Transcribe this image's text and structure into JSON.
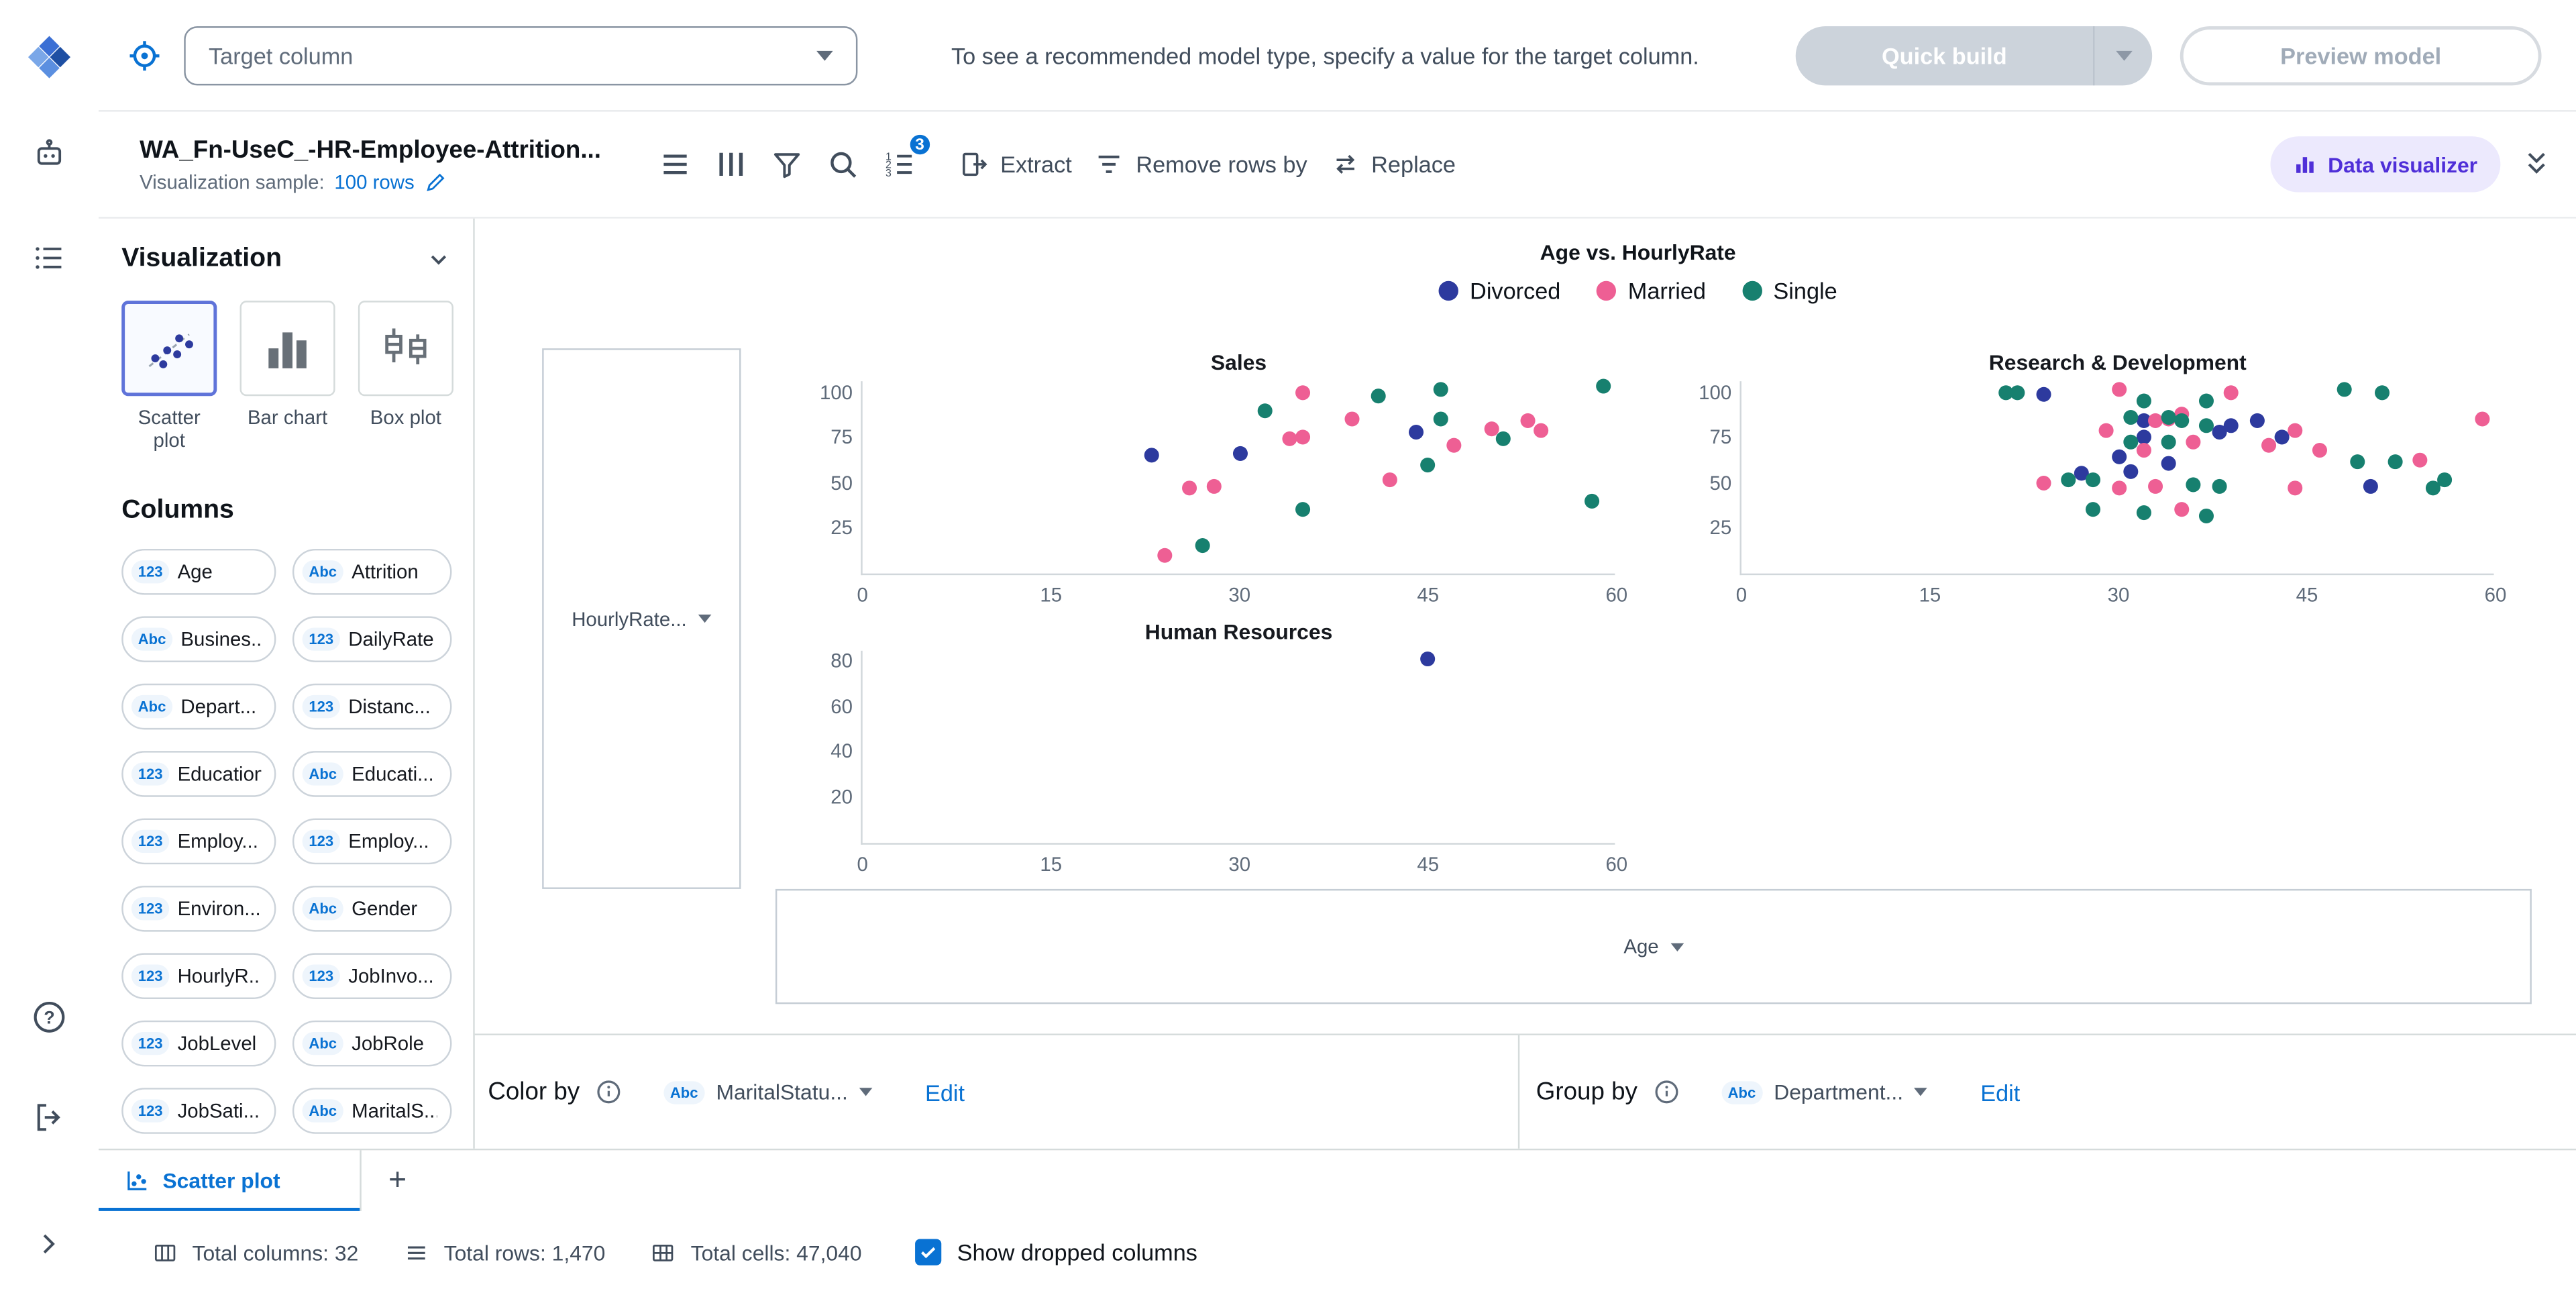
{
  "topbar": {
    "target_select": {
      "placeholder": "Target column"
    },
    "helper_text": "To see a recommended model type, specify a value for the target column.",
    "quick_build_label": "Quick build",
    "preview_model_label": "Preview model"
  },
  "dataset_header": {
    "title": "WA_Fn-UseC_-HR-Employee-Attrition...",
    "sample_label": "Visualization sample:",
    "sample_value": "100 rows",
    "toolbar": {
      "badge_count": "3",
      "extract_label": "Extract",
      "remove_rows_label": "Remove rows by",
      "replace_label": "Replace",
      "data_visualizer_label": "Data visualizer"
    }
  },
  "left_panel": {
    "visualization_title": "Visualization",
    "chart_types": [
      {
        "label": "Scatter plot",
        "selected": true
      },
      {
        "label": "Bar chart",
        "selected": false
      },
      {
        "label": "Box plot",
        "selected": false
      }
    ],
    "columns_title": "Columns",
    "columns": [
      {
        "type": "123",
        "label": "Age"
      },
      {
        "type": "Abc",
        "label": "Attrition"
      },
      {
        "type": "Abc",
        "label": "Busines..."
      },
      {
        "type": "123",
        "label": "DailyRate"
      },
      {
        "type": "Abc",
        "label": "Depart..."
      },
      {
        "type": "123",
        "label": "Distanc..."
      },
      {
        "type": "123",
        "label": "Education"
      },
      {
        "type": "Abc",
        "label": "Educati..."
      },
      {
        "type": "123",
        "label": "Employ..."
      },
      {
        "type": "123",
        "label": "Employ..."
      },
      {
        "type": "123",
        "label": "Environ..."
      },
      {
        "type": "Abc",
        "label": "Gender"
      },
      {
        "type": "123",
        "label": "HourlyR..."
      },
      {
        "type": "123",
        "label": "JobInvo..."
      },
      {
        "type": "123",
        "label": "JobLevel"
      },
      {
        "type": "Abc",
        "label": "JobRole"
      },
      {
        "type": "123",
        "label": "JobSati..."
      },
      {
        "type": "Abc",
        "label": "MaritalS..."
      }
    ]
  },
  "chart_data": {
    "type": "scatter",
    "title": "Age vs. HourlyRate",
    "y_axis_field": "HourlyRate...",
    "x_axis_field": "Age",
    "legend_position": "top",
    "legend": [
      {
        "label": "Divorced",
        "color": "#2d3a9e"
      },
      {
        "label": "Married",
        "color": "#ee5f94"
      },
      {
        "label": "Single",
        "color": "#17806f"
      }
    ],
    "subplots": [
      {
        "title": "Sales",
        "xlim": [
          0,
          60
        ],
        "ylim": [
          0,
          107
        ],
        "xticks": [
          0,
          15,
          30,
          45,
          60
        ],
        "yticks": [
          25,
          50,
          75,
          100
        ],
        "series": [
          {
            "name": "Divorced",
            "points": [
              [
                23,
                65
              ],
              [
                30,
                66
              ],
              [
                44,
                78
              ]
            ]
          },
          {
            "name": "Married",
            "points": [
              [
                24,
                10
              ],
              [
                26,
                47
              ],
              [
                28,
                48
              ],
              [
                34,
                74
              ],
              [
                35,
                100
              ],
              [
                35,
                75
              ],
              [
                39,
                85
              ],
              [
                42,
                52
              ],
              [
                47,
                71
              ],
              [
                50,
                80
              ],
              [
                53,
                84
              ],
              [
                54,
                79
              ]
            ]
          },
          {
            "name": "Single",
            "points": [
              [
                27,
                15
              ],
              [
                32,
                90
              ],
              [
                35,
                35
              ],
              [
                41,
                98
              ],
              [
                45,
                60
              ],
              [
                46,
                102
              ],
              [
                46,
                85
              ],
              [
                51,
                74
              ],
              [
                58,
                40
              ],
              [
                59,
                103
              ]
            ]
          }
        ]
      },
      {
        "title": "Research & Development",
        "xlim": [
          0,
          60
        ],
        "ylim": [
          0,
          107
        ],
        "xticks": [
          0,
          15,
          30,
          45,
          60
        ],
        "yticks": [
          25,
          50,
          75,
          100
        ],
        "series": [
          {
            "name": "Divorced",
            "points": [
              [
                24,
                99
              ],
              [
                27,
                55
              ],
              [
                30,
                64
              ],
              [
                31,
                56
              ],
              [
                32,
                84
              ],
              [
                32,
                75
              ],
              [
                34,
                61
              ],
              [
                38,
                78
              ],
              [
                39,
                82
              ],
              [
                41,
                84
              ],
              [
                43,
                75
              ],
              [
                50,
                48
              ]
            ]
          },
          {
            "name": "Married",
            "points": [
              [
                24,
                50
              ],
              [
                29,
                79
              ],
              [
                30,
                47
              ],
              [
                30,
                102
              ],
              [
                32,
                68
              ],
              [
                33,
                84
              ],
              [
                33,
                48
              ],
              [
                34,
                85
              ],
              [
                35,
                88
              ],
              [
                35,
                35
              ],
              [
                36,
                73
              ],
              [
                39,
                100
              ],
              [
                42,
                71
              ],
              [
                44,
                79
              ],
              [
                44,
                47
              ],
              [
                46,
                68
              ],
              [
                54,
                63
              ],
              [
                59,
                85
              ]
            ]
          },
          {
            "name": "Single",
            "points": [
              [
                21,
                100
              ],
              [
                22,
                100
              ],
              [
                26,
                52
              ],
              [
                28,
                35
              ],
              [
                28,
                52
              ],
              [
                31,
                73
              ],
              [
                31,
                86
              ],
              [
                32,
                34
              ],
              [
                32,
                95
              ],
              [
                34,
                86
              ],
              [
                34,
                73
              ],
              [
                35,
                84
              ],
              [
                36,
                49
              ],
              [
                37,
                95
              ],
              [
                37,
                82
              ],
              [
                37,
                32
              ],
              [
                38,
                48
              ],
              [
                48,
                102
              ],
              [
                49,
                62
              ],
              [
                51,
                100
              ],
              [
                52,
                62
              ],
              [
                55,
                47
              ],
              [
                56,
                52
              ]
            ]
          }
        ]
      },
      {
        "title": "Human Resources",
        "xlim": [
          0,
          60
        ],
        "ylim": [
          0,
          85
        ],
        "xticks": [
          0,
          15,
          30,
          45,
          60
        ],
        "yticks": [
          20,
          40,
          60,
          80
        ],
        "series": [
          {
            "name": "Divorced",
            "points": [
              [
                45,
                81
              ]
            ]
          },
          {
            "name": "Married",
            "points": []
          },
          {
            "name": "Single",
            "points": []
          }
        ]
      }
    ]
  },
  "controls": {
    "color_by": {
      "label": "Color by",
      "field_type": "Abc",
      "field_value": "MaritalStatu...",
      "edit_label": "Edit"
    },
    "group_by": {
      "label": "Group by",
      "field_type": "Abc",
      "field_value": "Department...",
      "edit_label": "Edit"
    }
  },
  "tabs": {
    "active_label": "Scatter plot",
    "add_label": "+"
  },
  "statusbar": {
    "total_columns": "Total columns: 32",
    "total_rows": "Total rows: 1,470",
    "total_cells": "Total cells: 47,040",
    "show_dropped_label": "Show dropped columns",
    "show_dropped_checked": true
  }
}
